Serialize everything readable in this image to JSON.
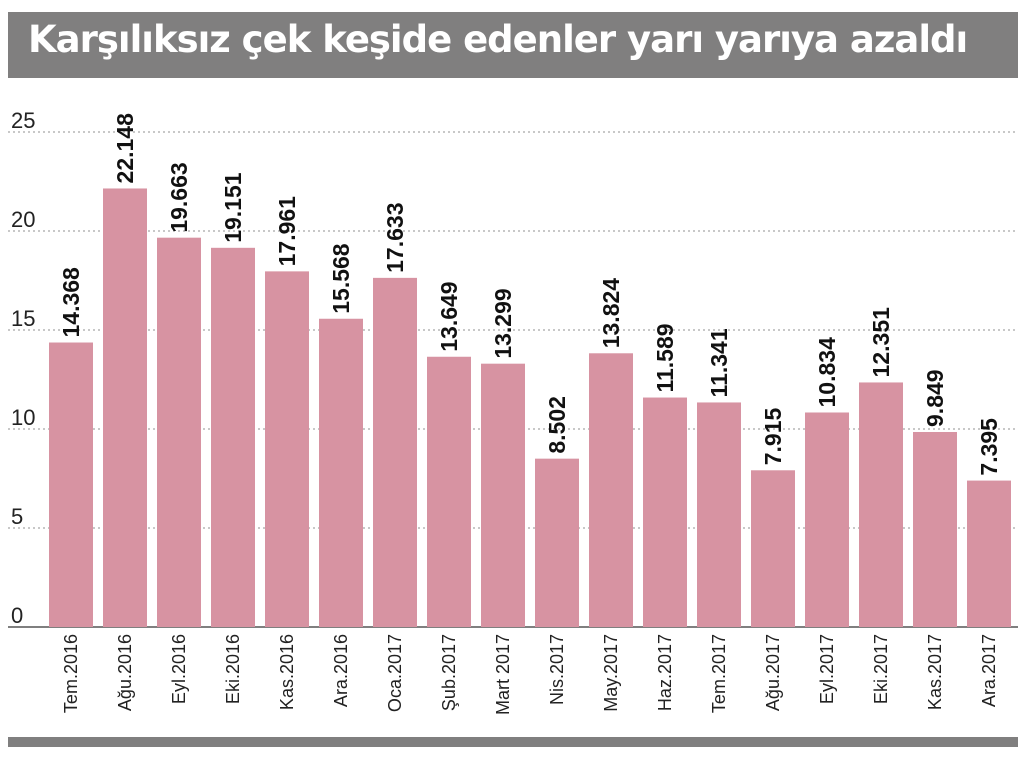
{
  "title": "Karşılıksız çek keşide edenler yarı yarıya azaldı",
  "colors": {
    "bar": "#d793a2",
    "header": "#807f7f",
    "grid": "#a6a6a6",
    "text": "#222222"
  },
  "chart_data": {
    "type": "bar",
    "title": "Karşılıksız çek keşide edenler yarı yarıya azaldı",
    "xlabel": "",
    "ylabel": "",
    "ylim": [
      0,
      25
    ],
    "yticks": [
      "0",
      "5",
      "10",
      "15",
      "20",
      "25"
    ],
    "grid": true,
    "categories": [
      "Tem.2016",
      "Ağu.2016",
      "Eyl.2016",
      "Eki.2016",
      "Kas.2016",
      "Ara.2016",
      "Oca.2017",
      "Şub.2017",
      "Mart 2017",
      "Nis.2017",
      "May.2017",
      "Haz.2017",
      "Tem.2017",
      "Ağu.2017",
      "Eyl.2017",
      "Eki.2017",
      "Kas.2017",
      "Ara.2017"
    ],
    "values": [
      14.368,
      22.148,
      19.663,
      19.151,
      17.961,
      15.568,
      17.633,
      13.649,
      13.299,
      8.502,
      13.824,
      11.589,
      11.341,
      7.915,
      10.834,
      12.351,
      9.849,
      7.395
    ],
    "labels": [
      "14.368",
      "22.148",
      "19.663",
      "19.151",
      "17.961",
      "15.568",
      "17.633",
      "13.649",
      "13.299",
      "8.502",
      "13.824",
      "11.589",
      "11.341",
      "7.915",
      "10.834",
      "12.351",
      "9.849",
      "7.395"
    ]
  }
}
